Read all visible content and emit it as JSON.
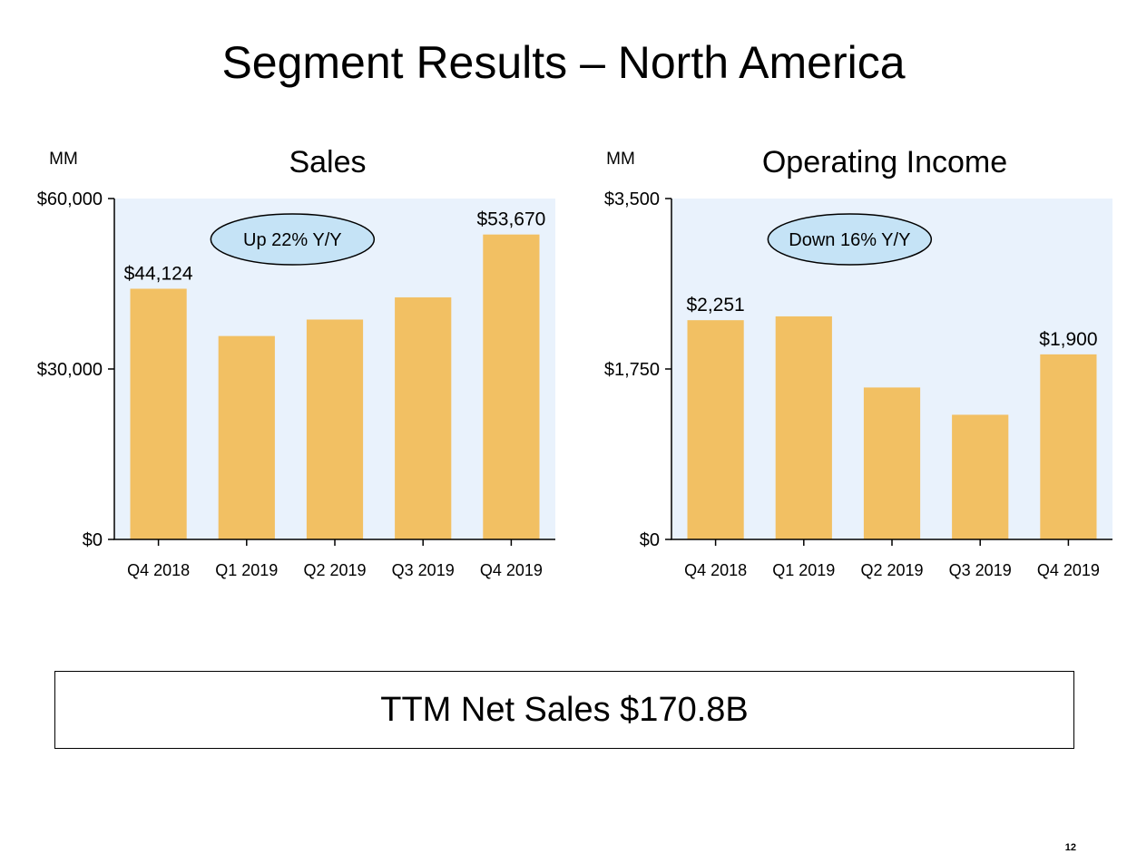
{
  "title": "Segment Results – North America",
  "footer": {
    "text": "TTM Net Sales $170.8B"
  },
  "page_number": "12",
  "colors": {
    "bar": "#F2C063",
    "plot_bg": "#E9F2FC",
    "callout_fill": "#C5E3F6",
    "axis": "#000000"
  },
  "chart_data": [
    {
      "type": "bar",
      "title": "Sales",
      "unit": "MM",
      "categories": [
        "Q4 2018",
        "Q1 2019",
        "Q2 2019",
        "Q3 2019",
        "Q4 2019"
      ],
      "values": [
        44124,
        35800,
        38700,
        42600,
        53670
      ],
      "ylim": [
        0,
        60000
      ],
      "yticks": [
        0,
        30000,
        60000
      ],
      "ytick_labels": [
        "$0",
        "$30,000",
        "$60,000"
      ],
      "data_labels": [
        {
          "index": 0,
          "text": "$44,124"
        },
        {
          "index": 4,
          "text": "$53,670"
        }
      ],
      "callout": "Up 22% Y/Y",
      "grid": false
    },
    {
      "type": "bar",
      "title": "Operating Income",
      "unit": "MM",
      "categories": [
        "Q4 2018",
        "Q1 2019",
        "Q2 2019",
        "Q3 2019",
        "Q4 2019"
      ],
      "values": [
        2251,
        2290,
        1560,
        1280,
        1900
      ],
      "ylim": [
        0,
        3500
      ],
      "yticks": [
        0,
        1750,
        3500
      ],
      "ytick_labels": [
        "$0",
        "$1,750",
        "$3,500"
      ],
      "data_labels": [
        {
          "index": 0,
          "text": "$2,251"
        },
        {
          "index": 4,
          "text": "$1,900"
        }
      ],
      "callout": "Down 16% Y/Y",
      "grid": false
    }
  ]
}
